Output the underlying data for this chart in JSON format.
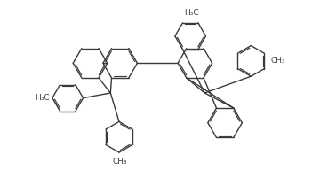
{
  "background_color": "#ffffff",
  "line_color": "#3a3a3a",
  "text_color": "#3a3a3a",
  "line_width": 1.0,
  "font_size": 6.5,
  "xlim": [
    -2.0,
    2.2
  ],
  "ylim": [
    -1.35,
    1.35
  ]
}
